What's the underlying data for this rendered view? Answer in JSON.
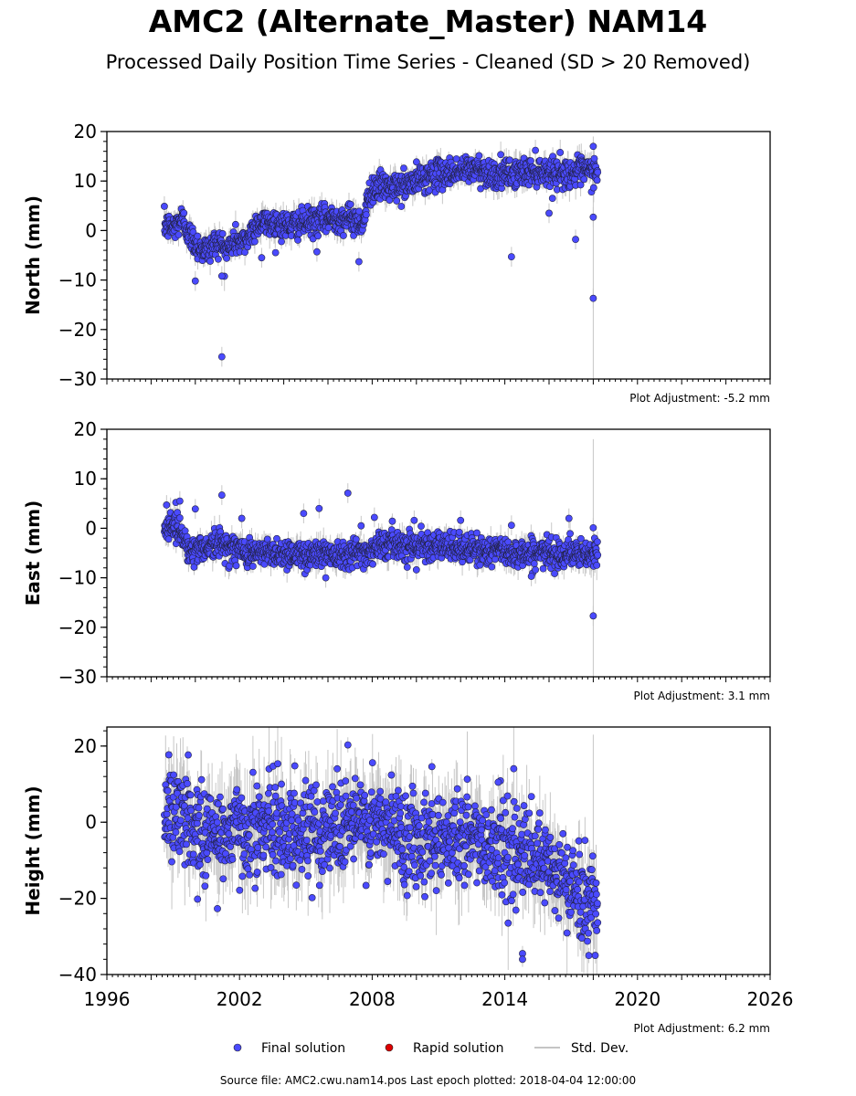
{
  "title": "AMC2 (Alternate_Master) NAM14",
  "subtitle": "Processed Daily Position Time Series - Cleaned (SD > 20 Removed)",
  "footer": "Source file: AMC2.cwu.nam14.pos  Last epoch plotted: 2018-04-04 12:00:00",
  "colors": {
    "final": "#4a4aff",
    "rapid": "#dd0000",
    "stddev": "#b0b0b0"
  },
  "legend": {
    "placement": "bottom-center",
    "items": [
      {
        "label": "Final solution",
        "marker": "dot",
        "color": "#4a4aff"
      },
      {
        "label": "Rapid solution",
        "marker": "dot",
        "color": "#dd0000"
      },
      {
        "label": "Std. Dev.",
        "marker": "line",
        "color": "#b0b0b0"
      }
    ]
  },
  "chart_data": [
    {
      "type": "scatter",
      "ylabel": "North (mm)",
      "xlim": [
        1996,
        2026
      ],
      "ylim": [
        -30,
        20
      ],
      "yticks": [
        20,
        10,
        0,
        -10,
        -20,
        -30
      ],
      "xticks": [],
      "adjustment": "Plot Adjustment: -5.2 mm",
      "grid": false,
      "series": [
        {
          "x": [
            1998.6,
            1999.0,
            1999.4,
            1999.8,
            2000.2,
            2000.6,
            2001.0,
            2001.4,
            2001.8,
            2002.2,
            2002.8,
            2003.5,
            2004.2,
            2004.9,
            2005.6,
            2006.3,
            2007.0,
            2007.6,
            2007.9,
            2008.3,
            2009.0,
            2009.8,
            2010.5,
            2011.2,
            2012.0,
            2012.8,
            2013.6,
            2014.4,
            2015.2,
            2016.0,
            2016.8,
            2017.5,
            2018.2
          ],
          "y": [
            1.0,
            0.5,
            2.5,
            -1.5,
            -3.5,
            -4.0,
            -2.0,
            -4.0,
            -2.0,
            -2.5,
            1.5,
            1.5,
            1.0,
            1.5,
            2.0,
            2.5,
            2.5,
            1.5,
            8.0,
            9.0,
            8.5,
            9.5,
            11.0,
            11.5,
            12.0,
            12.5,
            11.0,
            11.5,
            12.0,
            12.0,
            11.5,
            12.0,
            12.0
          ],
          "outliers": [
            [
              2001.2,
              -25.5
            ],
            [
              2001.2,
              -9.2
            ],
            [
              2000.0,
              -10.2
            ],
            [
              2003.0,
              -5.5
            ],
            [
              2005.5,
              -4.3
            ],
            [
              2007.4,
              -6.3
            ],
            [
              2014.3,
              -5.3
            ],
            [
              2016.0,
              3.5
            ],
            [
              2017.2,
              -1.8
            ],
            [
              2018.0,
              -13.7
            ],
            [
              2018.0,
              2.7
            ],
            [
              2018.0,
              17.0
            ]
          ],
          "scatter": 1.4
        }
      ]
    },
    {
      "type": "scatter",
      "ylabel": "East (mm)",
      "xlim": [
        1996,
        2026
      ],
      "ylim": [
        -30,
        20
      ],
      "yticks": [
        20,
        10,
        0,
        -10,
        -20,
        -30
      ],
      "xticks": [],
      "adjustment": "Plot Adjustment: 3.1 mm",
      "grid": false,
      "series": [
        {
          "x": [
            1998.6,
            1999.0,
            1999.4,
            1999.8,
            2000.2,
            2000.6,
            2001.0,
            2001.4,
            2002.0,
            2002.8,
            2003.5,
            2004.2,
            2004.9,
            2005.6,
            2006.3,
            2007.0,
            2007.6,
            2008.3,
            2009.0,
            2009.8,
            2010.5,
            2011.2,
            2012.0,
            2012.8,
            2013.6,
            2014.4,
            2015.2,
            2016.0,
            2016.8,
            2017.5,
            2018.2
          ],
          "y": [
            0.0,
            1.0,
            -1.0,
            -5.0,
            -4.0,
            -3.5,
            -3.0,
            -3.5,
            -4.5,
            -5.0,
            -5.0,
            -5.0,
            -5.5,
            -5.0,
            -5.0,
            -5.0,
            -5.0,
            -3.5,
            -3.0,
            -3.5,
            -3.0,
            -4.0,
            -4.0,
            -4.5,
            -4.5,
            -5.0,
            -5.0,
            -5.0,
            -5.0,
            -5.5,
            -5.5
          ],
          "outliers": [
            [
              1998.7,
              4.7
            ],
            [
              1999.3,
              5.5
            ],
            [
              2000.0,
              3.9
            ],
            [
              2001.2,
              6.7
            ],
            [
              2002.1,
              2.0
            ],
            [
              2004.9,
              3.0
            ],
            [
              2005.6,
              4.0
            ],
            [
              2005.9,
              -10.0
            ],
            [
              2006.9,
              7.1
            ],
            [
              2007.5,
              0.5
            ],
            [
              2008.1,
              2.2
            ],
            [
              2009.9,
              1.6
            ],
            [
              2010.0,
              -8.4
            ],
            [
              2012.0,
              1.6
            ],
            [
              2014.3,
              0.6
            ],
            [
              2015.2,
              -9.7
            ],
            [
              2016.9,
              2.0
            ],
            [
              2018.0,
              0.1
            ],
            [
              2018.0,
              -17.7
            ]
          ],
          "scatter": 1.4
        }
      ]
    },
    {
      "type": "scatter",
      "ylabel": "Height (mm)",
      "xlim": [
        1996,
        2026
      ],
      "ylim": [
        -40,
        25
      ],
      "yticks": [
        20,
        0,
        -20,
        -40
      ],
      "xticks": [
        1996,
        2002,
        2008,
        2014,
        2020,
        2026
      ],
      "adjustment": "Plot Adjustment: 6.2 mm",
      "grid": false,
      "series": [
        {
          "x": [
            1998.6,
            1999.2,
            1999.8,
            2000.5,
            2001.2,
            2002.0,
            2003.0,
            2004.0,
            2005.0,
            2006.0,
            2007.0,
            2008.0,
            2009.0,
            2010.0,
            2011.0,
            2012.0,
            2013.0,
            2014.0,
            2014.6,
            2015.2,
            2015.8,
            2016.4,
            2017.0,
            2017.5,
            2018.2
          ],
          "y": [
            2.0,
            2.0,
            0.0,
            -3.0,
            -3.0,
            -2.0,
            -1.5,
            -2.0,
            -3.0,
            -1.0,
            0.0,
            -1.0,
            -2.0,
            -4.0,
            -4.0,
            -4.0,
            -5.0,
            -7.0,
            -8.0,
            -10.0,
            -12.0,
            -14.0,
            -17.0,
            -20.0,
            -20.0
          ],
          "outliers": [
            [
              1998.8,
              17.7
            ],
            [
              2004.5,
              14.8
            ],
            [
              2006.9,
              20.3
            ],
            [
              2010.7,
              14.6
            ],
            [
              2013.7,
              10.5
            ],
            [
              2014.8,
              -34.5
            ],
            [
              2014.8,
              -36.0
            ],
            [
              2017.8,
              -35.0
            ],
            [
              2001.0,
              -22.7
            ],
            [
              2000.1,
              -20.2
            ]
          ],
          "scatter": 6.0
        }
      ]
    }
  ]
}
